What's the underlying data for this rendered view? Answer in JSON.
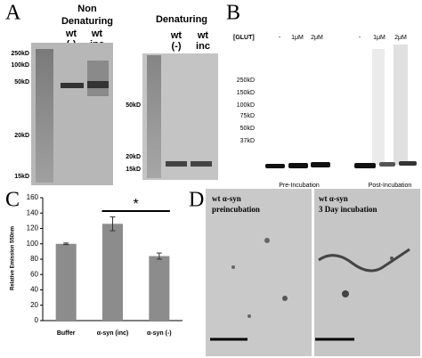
{
  "panels": {
    "a": {
      "letter": "A",
      "left_header": [
        "Non",
        "Denaturing"
      ],
      "left_lanes": [
        [
          "wt",
          "(-)"
        ],
        [
          "wt",
          "inc"
        ]
      ],
      "left_kd": [
        "250kD",
        "100kD",
        "50kD",
        "20kD",
        "15kD"
      ],
      "right_header": "Denaturing",
      "right_lanes": [
        [
          "wt",
          "(-)"
        ],
        [
          "wt",
          "inc"
        ]
      ],
      "right_kd": [
        "50kD",
        "20kD",
        "15kD"
      ]
    },
    "b": {
      "letter": "B",
      "glut": "[GLUT]",
      "conc": [
        "-",
        "1μM",
        "2μM",
        "-",
        "1μM",
        "2μM"
      ],
      "kd": [
        "250kD",
        "150kD",
        "100kD",
        "75kD",
        "50kD",
        "37kD"
      ],
      "groups": [
        "Pre-Incubation",
        "Post-Incubation"
      ]
    },
    "c": {
      "letter": "C"
    },
    "d": {
      "letter": "D",
      "left": [
        "wt α-syn",
        "preincubation"
      ],
      "right": [
        "wt α-syn",
        "3 Day incubation"
      ]
    }
  },
  "chart_data": {
    "type": "bar",
    "y_label": "Relative Emission 550nm",
    "categories": [
      "Buffer",
      "α-syn (inc)",
      "α-syn (-)"
    ],
    "values": [
      100,
      126,
      84
    ],
    "errors": [
      1,
      9,
      4
    ],
    "color": "#8c8c8c",
    "ylim": [
      0,
      160
    ],
    "yticks": [
      0,
      20,
      40,
      60,
      80,
      100,
      120,
      140,
      160
    ],
    "annotation": "*"
  }
}
